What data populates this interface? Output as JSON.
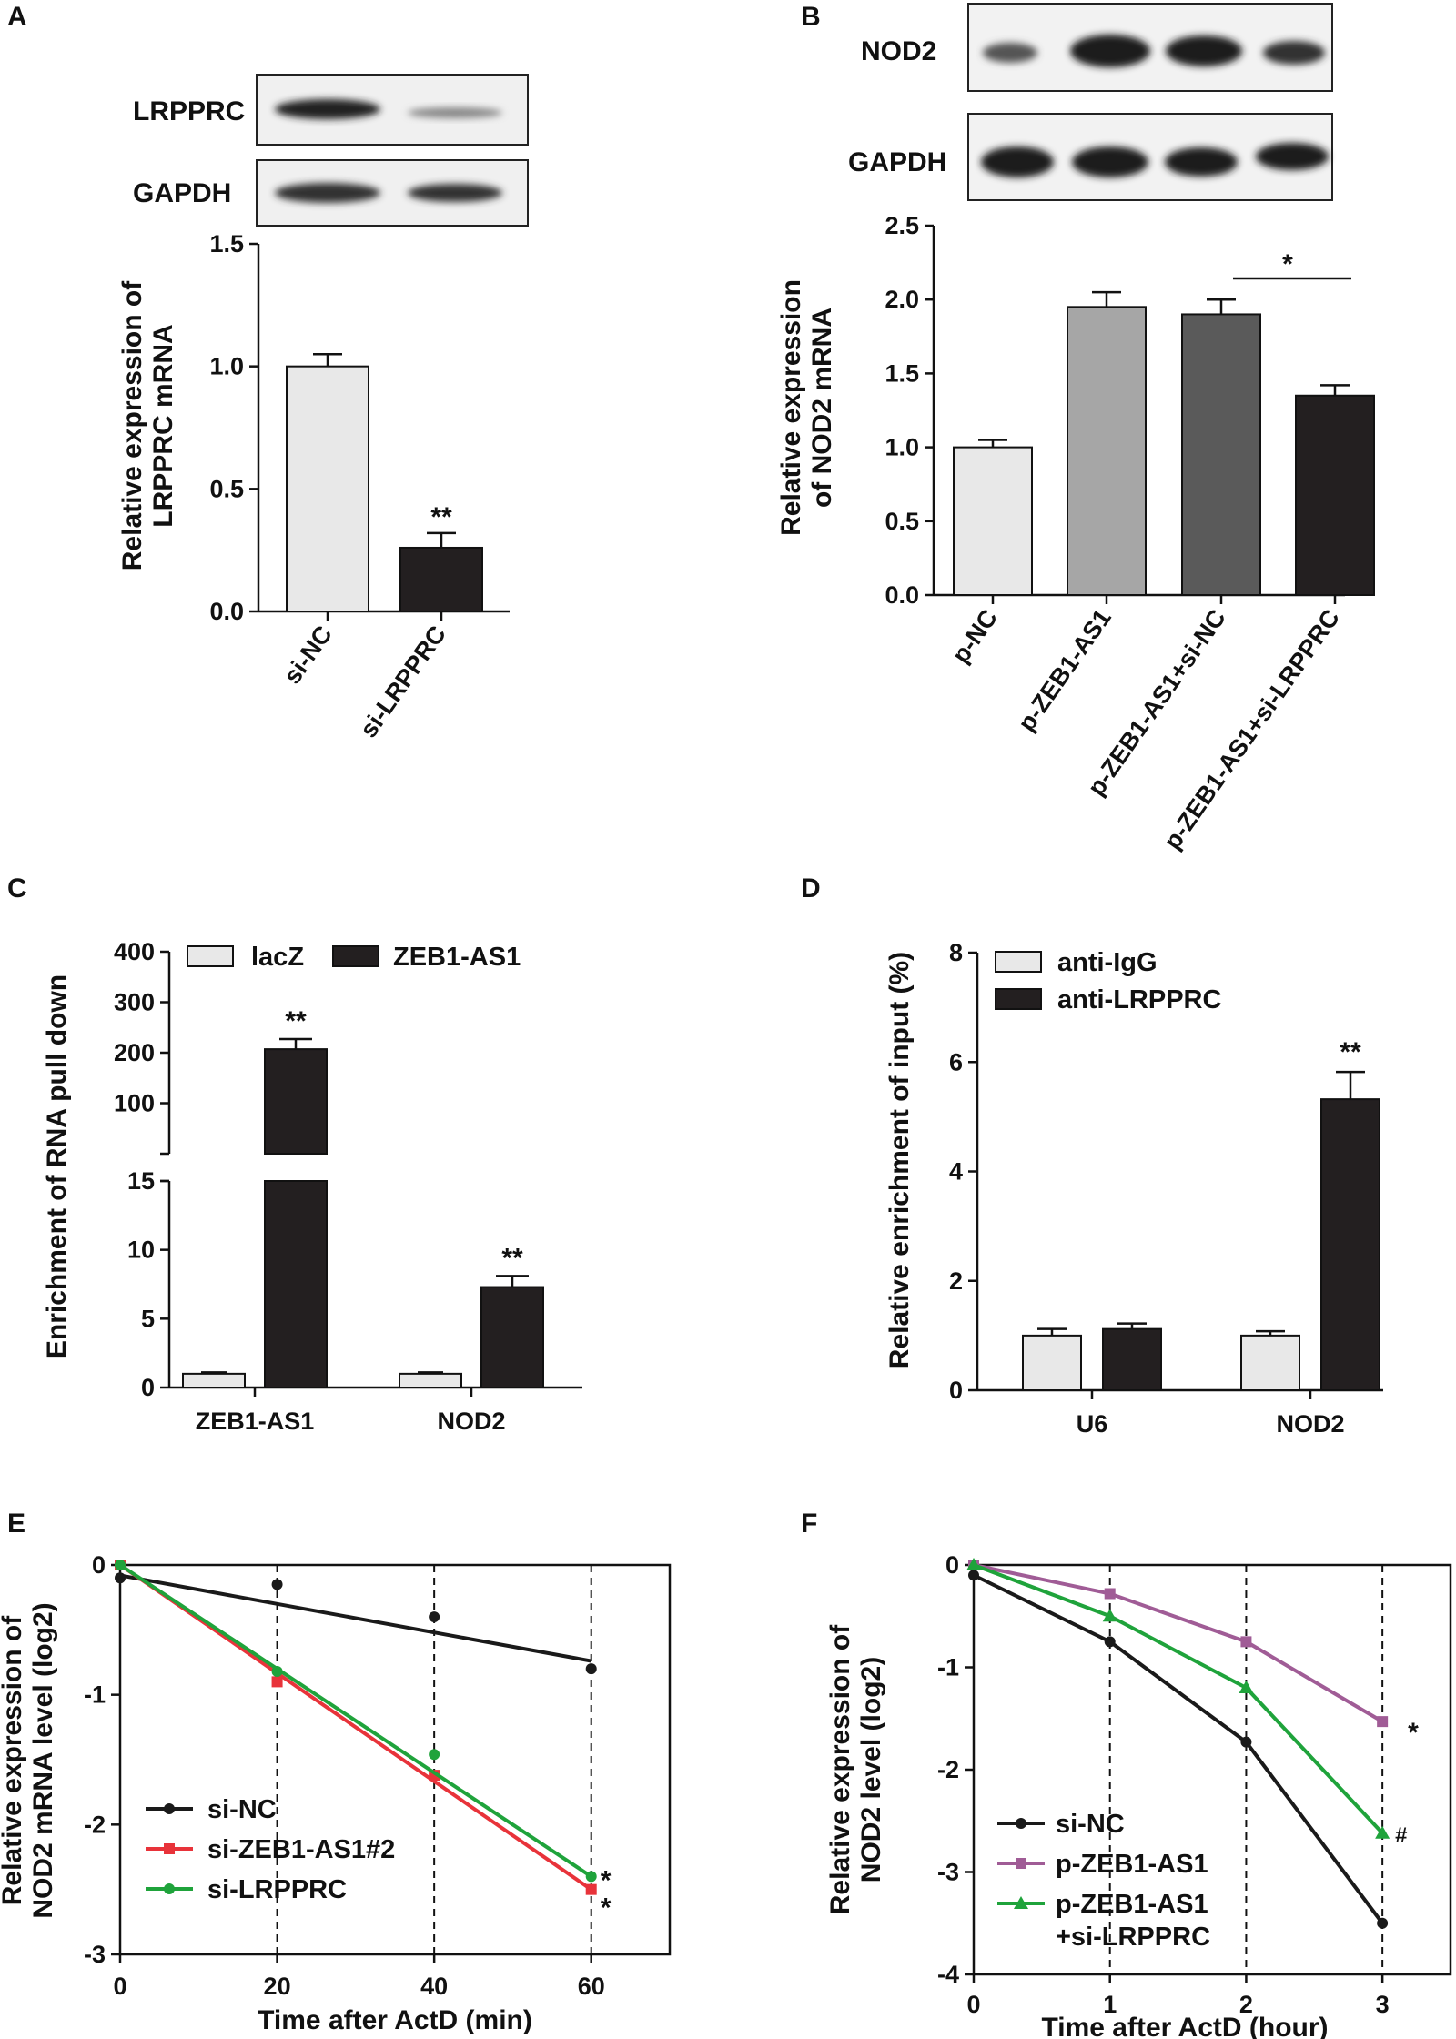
{
  "panels": {
    "A": {
      "label": "A",
      "blots": [
        "LRPPRC",
        "GAPDH"
      ]
    },
    "B": {
      "label": "B",
      "blots": [
        "NOD2",
        "GAPDH"
      ]
    },
    "C": {
      "label": "C"
    },
    "D": {
      "label": "D"
    },
    "E": {
      "label": "E"
    },
    "F": {
      "label": "F"
    }
  },
  "colors": {
    "light": "#e8e8e8",
    "gray": "#a6a6a6",
    "darkgray": "#5a5a5a",
    "black": "#231f20",
    "red": "#e8333a",
    "purple": "#a05c96",
    "green": "#1fa33b",
    "line_black": "#1a1a1a"
  },
  "chart_data": [
    {
      "id": "A",
      "type": "bar",
      "title": "",
      "ylabel": [
        "Relative expression of",
        "LRPPRC mRNA"
      ],
      "categories": [
        "si-NC",
        "si-LRPPRC"
      ],
      "values": [
        1.0,
        0.26
      ],
      "errors": [
        0.05,
        0.06
      ],
      "bar_colors": [
        "#e8e8e8",
        "#231f20"
      ],
      "ylim": [
        0,
        1.5
      ],
      "yticks": [
        "0.0",
        "0.5",
        "1.0",
        "1.5"
      ],
      "annotations": [
        "**"
      ]
    },
    {
      "id": "B",
      "type": "bar",
      "ylabel": [
        "Relative expression",
        "of NOD2 mRNA"
      ],
      "categories": [
        "p-NC",
        "p-ZEB1-AS1",
        "p-ZEB1-AS1+si-NC",
        "p-ZEB1-AS1+si-LRPPRC"
      ],
      "values": [
        1.0,
        1.95,
        1.9,
        1.35
      ],
      "errors": [
        0.05,
        0.1,
        0.1,
        0.07
      ],
      "bar_colors": [
        "#e8e8e8",
        "#a6a6a6",
        "#5a5a5a",
        "#231f20"
      ],
      "ylim": [
        0,
        2.5
      ],
      "yticks": [
        "0.0",
        "0.5",
        "1.0",
        "1.5",
        "2.0",
        "2.5"
      ],
      "annotations": [
        "*"
      ]
    },
    {
      "id": "C",
      "type": "bar",
      "ylabel": "Enrichment of RNA pull down",
      "categories": [
        "ZEB1-AS1",
        "NOD2"
      ],
      "series": [
        {
          "name": "lacZ",
          "values": [
            1.0,
            1.0
          ],
          "errors": [
            0.1,
            0.1
          ],
          "color": "#e8e8e8"
        },
        {
          "name": "ZEB1-AS1",
          "values": [
            207,
            7.3
          ],
          "errors": [
            20,
            0.8
          ],
          "color": "#231f20"
        }
      ],
      "ylim_lower": [
        0,
        15
      ],
      "ylim_upper": [
        0,
        400
      ],
      "yticks_lower": [
        "0",
        "5",
        "10",
        "15"
      ],
      "yticks_upper": [
        "100",
        "200",
        "300",
        "400"
      ],
      "annotations": [
        "**",
        "**"
      ]
    },
    {
      "id": "D",
      "type": "bar",
      "ylabel": "Relative enrichment of input (%)",
      "categories": [
        "U6",
        "NOD2"
      ],
      "series": [
        {
          "name": "anti-IgG",
          "values": [
            1.0,
            1.0
          ],
          "errors": [
            0.12,
            0.08
          ],
          "color": "#e8e8e8"
        },
        {
          "name": "anti-LRPPRC",
          "values": [
            1.12,
            5.32
          ],
          "errors": [
            0.1,
            0.5
          ],
          "color": "#231f20"
        }
      ],
      "ylim": [
        0,
        8
      ],
      "yticks": [
        "0",
        "2",
        "4",
        "6",
        "8"
      ],
      "annotations": [
        "**"
      ]
    },
    {
      "id": "E",
      "type": "line",
      "xlabel": "Time after ActD (min)",
      "ylabel": [
        "Relative expression of",
        "NOD2 mRNA level (log2)"
      ],
      "xlim": [
        0,
        70
      ],
      "ylim": [
        -3,
        0
      ],
      "xticks": [
        "0",
        "20",
        "40",
        "60"
      ],
      "yticks": [
        "-3",
        "-2",
        "-1",
        "0"
      ],
      "series": [
        {
          "name": "si-NC",
          "color": "#1a1a1a",
          "marker": "circle",
          "x": [
            0,
            20,
            40,
            60
          ],
          "y": [
            -0.1,
            -0.15,
            -0.4,
            -0.8
          ],
          "fit": [
            -0.08,
            -0.74
          ]
        },
        {
          "name": "si-ZEB1-AS1#2",
          "color": "#e8333a",
          "marker": "square",
          "x": [
            0,
            20,
            40,
            60
          ],
          "y": [
            0.0,
            -0.9,
            -1.62,
            -2.5
          ],
          "fit": [
            0.0,
            -2.5
          ]
        },
        {
          "name": "si-LRPPRC",
          "color": "#1fa33b",
          "marker": "circle",
          "x": [
            0,
            20,
            40,
            60
          ],
          "y": [
            0.0,
            -0.82,
            -1.46,
            -2.4
          ],
          "fit": [
            0.0,
            -2.4
          ]
        }
      ],
      "annotations": [
        "*",
        "*"
      ]
    },
    {
      "id": "F",
      "type": "line",
      "xlabel": "Time after ActD (hour)",
      "ylabel": [
        "Relative expression of",
        "NOD2 level (log2)"
      ],
      "xlim": [
        0,
        3.5
      ],
      "ylim": [
        -4,
        0
      ],
      "xticks": [
        "0",
        "1",
        "2",
        "3"
      ],
      "yticks": [
        "-4",
        "-3",
        "-2",
        "-1",
        "0"
      ],
      "series": [
        {
          "name": "si-NC",
          "color": "#1a1a1a",
          "marker": "circle",
          "x": [
            0,
            1,
            2,
            3
          ],
          "y": [
            -0.1,
            -0.75,
            -1.73,
            -3.5
          ]
        },
        {
          "name": "p-ZEB1-AS1",
          "color": "#a05c96",
          "marker": "square",
          "x": [
            0,
            1,
            2,
            3
          ],
          "y": [
            0.0,
            -0.28,
            -0.75,
            -1.53
          ]
        },
        {
          "name": "p-ZEB1-AS1 +si-LRPPRC",
          "legend_lines": [
            "p-ZEB1-AS1",
            "+si-LRPPRC"
          ],
          "color": "#1fa33b",
          "marker": "triangle",
          "x": [
            0,
            1,
            2,
            3
          ],
          "y": [
            0.0,
            -0.5,
            -1.2,
            -2.62
          ]
        }
      ],
      "annotations": [
        "*",
        "#"
      ]
    }
  ]
}
